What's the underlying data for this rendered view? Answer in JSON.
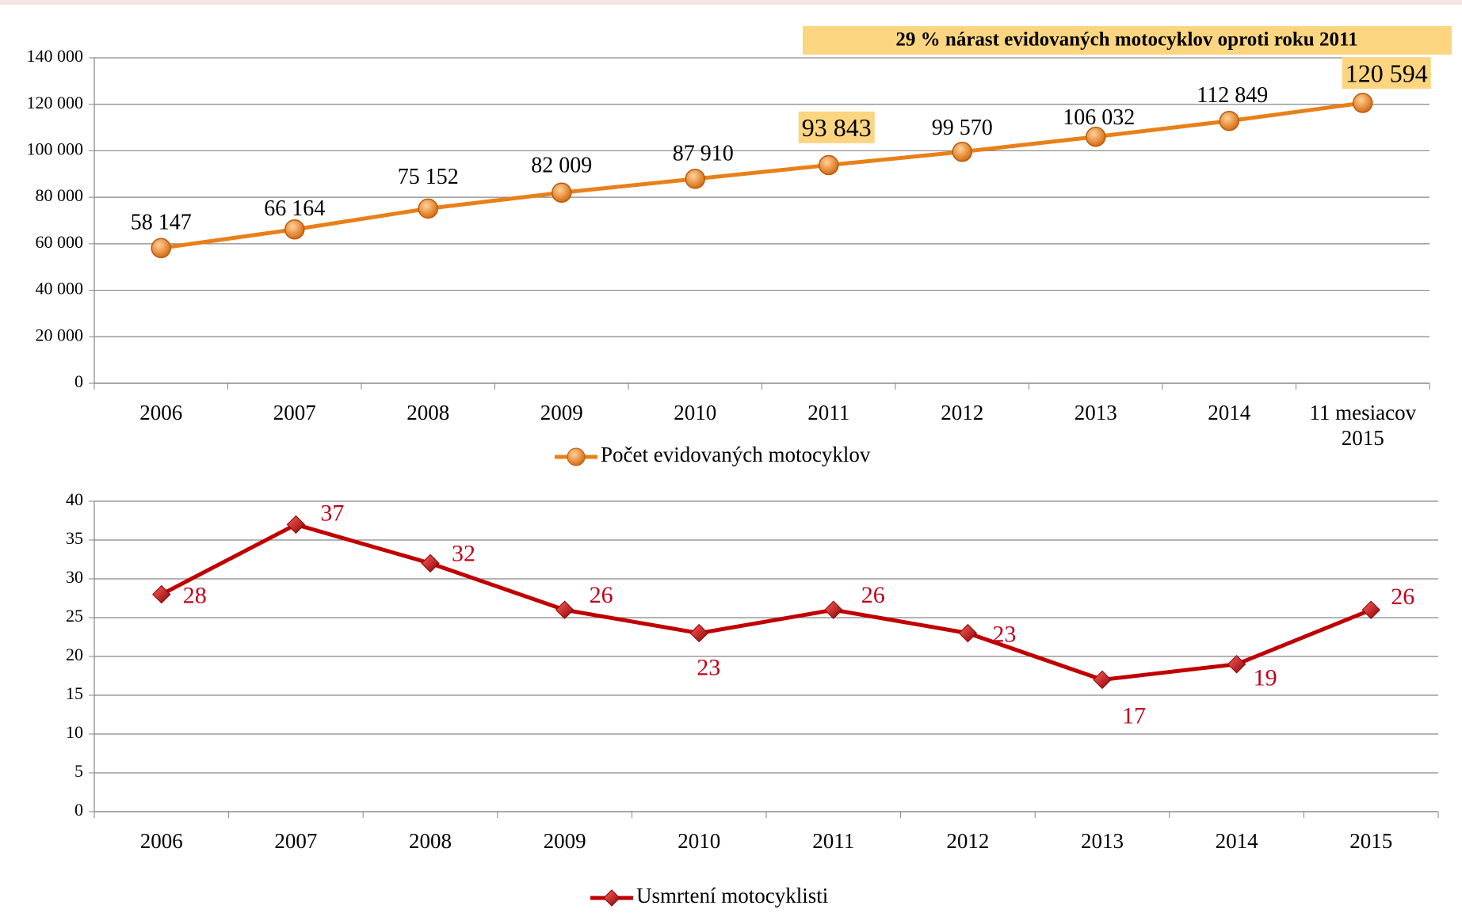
{
  "chart_data": [
    {
      "type": "line",
      "annotation": "29 % nárast evidovaných motocyklov oproti roku 2011",
      "categories": [
        "2006",
        "2007",
        "2008",
        "2009",
        "2010",
        "2011",
        "2012",
        "2013",
        "2014",
        "11 mesiacov 2015"
      ],
      "series": [
        {
          "name": "Počet evidovaných motocyklov",
          "color": "#e8801a",
          "values": [
            58147,
            66164,
            75152,
            82009,
            87910,
            93843,
            99570,
            106032,
            112849,
            120594
          ],
          "value_labels": [
            "58 147",
            "66 164",
            "75 152",
            "82 009",
            "87 910",
            "93 843",
            "99 570",
            "106 032",
            "112 849",
            "120 594"
          ],
          "highlighted_labels": [
            5,
            9
          ]
        }
      ],
      "ylim": [
        0,
        140000
      ],
      "yticks": [
        0,
        {
          "value": 20000,
          "label": "20 000"
        },
        {
          "value": 40000,
          "label": "40 000"
        },
        {
          "value": 60000,
          "label": "60 000"
        },
        {
          "value": 80000,
          "label": "80 000"
        },
        {
          "value": 100000,
          "label": "100 000"
        },
        {
          "value": 120000,
          "label": "120 000"
        },
        {
          "value": 140000,
          "label": "140 000"
        }
      ],
      "grid": true,
      "marker": "circle"
    },
    {
      "type": "line",
      "categories": [
        "2006",
        "2007",
        "2008",
        "2009",
        "2010",
        "2011",
        "2012",
        "2013",
        "2014",
        "2015"
      ],
      "series": [
        {
          "name": "Usmrtení motocyklisti",
          "color": "#c00000",
          "values": [
            28,
            37,
            32,
            26,
            23,
            26,
            23,
            17,
            19,
            26
          ]
        }
      ],
      "ylim": [
        0,
        40
      ],
      "yticks": [
        0,
        5,
        10,
        15,
        20,
        25,
        30,
        35,
        40
      ],
      "grid": true,
      "marker": "diamond"
    }
  ]
}
